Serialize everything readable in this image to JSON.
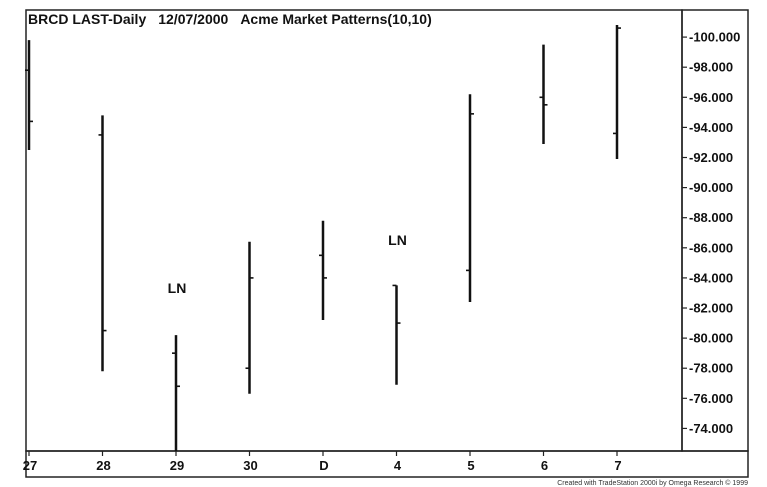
{
  "chart_data": {
    "type": "ohlc",
    "title": "BRCD LAST-Daily",
    "date": "12/07/2000",
    "indicator": "Acme Market Patterns(10,10)",
    "categories": [
      "27",
      "28",
      "29",
      "30",
      "D",
      "4",
      "5",
      "6",
      "7"
    ],
    "bars": [
      {
        "high": 99.8,
        "low": 92.5,
        "open": 97.8,
        "close": 94.4
      },
      {
        "high": 94.8,
        "low": 77.8,
        "open": 93.5,
        "close": 80.5
      },
      {
        "high": 80.2,
        "low": 72.5,
        "open": 79.0,
        "close": 76.8
      },
      {
        "high": 86.4,
        "low": 76.3,
        "open": 78.0,
        "close": 84.0
      },
      {
        "high": 87.8,
        "low": 81.2,
        "open": 85.5,
        "close": 84.0
      },
      {
        "high": 83.5,
        "low": 76.9,
        "open": 83.5,
        "close": 81.0
      },
      {
        "high": 96.2,
        "low": 82.4,
        "open": 84.5,
        "close": 94.9
      },
      {
        "high": 99.5,
        "low": 92.9,
        "open": 96.0,
        "close": 95.5
      },
      {
        "high": 100.8,
        "low": 91.9,
        "open": 93.6,
        "close": 100.6
      }
    ],
    "y_ticks": [
      "74.000",
      "76.000",
      "78.000",
      "80.000",
      "82.000",
      "84.000",
      "86.000",
      "88.000",
      "90.000",
      "92.000",
      "94.000",
      "96.000",
      "98.000",
      "100.000"
    ],
    "ylim": [
      72.5,
      101.8
    ],
    "annotations": [
      {
        "text": "LN",
        "category": "29",
        "y": 83.0
      },
      {
        "text": "LN",
        "category": "4",
        "y": 86.2
      }
    ],
    "grid": false,
    "colors": {
      "bar": "#111111",
      "axis": "#222222",
      "background": "#ffffff"
    }
  },
  "footer": "Created with TradeStation 2000i by Omega Research © 1999"
}
